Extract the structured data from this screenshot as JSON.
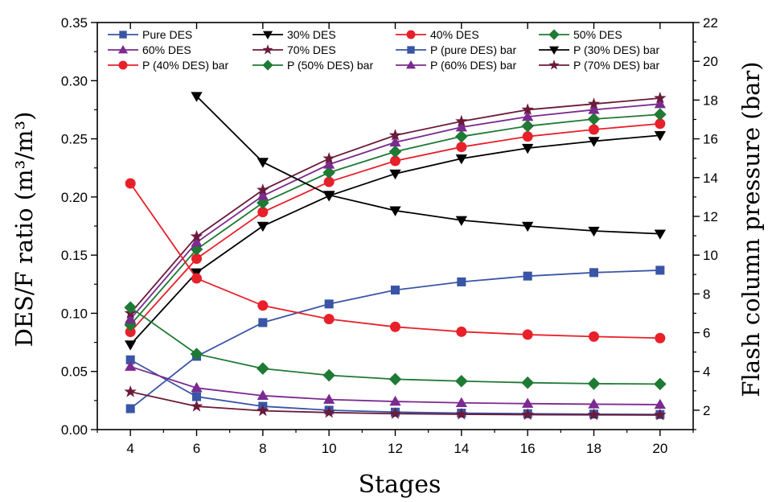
{
  "chart_data": {
    "type": "line",
    "title": "",
    "xlabel": "Stages",
    "ylabel_left": "DES/F ratio (m³/m³)",
    "ylabel_right": "Flash column pressure (bar)",
    "x": [
      4,
      6,
      8,
      10,
      12,
      14,
      16,
      18,
      20
    ],
    "xlim": [
      3,
      21
    ],
    "ylim_left": [
      0,
      0.35
    ],
    "ylim_right": [
      1,
      22
    ],
    "x_ticks": [
      "4",
      "6",
      "8",
      "10",
      "12",
      "14",
      "16",
      "18",
      "20"
    ],
    "y_left_ticks": [
      "0.00",
      "0.05",
      "0.10",
      "0.15",
      "0.20",
      "0.25",
      "0.30",
      "0.35"
    ],
    "y_right_ticks": [
      "2",
      "4",
      "6",
      "8",
      "10",
      "12",
      "14",
      "16",
      "18",
      "20",
      "22"
    ],
    "grid": false,
    "legend_position": "top",
    "series": [
      {
        "name": "Pure DES",
        "axis": "left",
        "marker": "square",
        "color": "#3a55a6",
        "values": [
          0.018,
          0.063,
          0.092,
          0.108,
          0.12,
          0.127,
          0.132,
          0.135,
          0.137
        ]
      },
      {
        "name": "30% DES",
        "axis": "left",
        "marker": "triangle-down",
        "color": "#000000",
        "values": [
          0.073,
          0.135,
          0.175,
          0.201,
          0.22,
          0.233,
          0.242,
          0.248,
          0.253
        ]
      },
      {
        "name": "40% DES",
        "axis": "left",
        "marker": "circle",
        "color": "#e8202a",
        "values": [
          0.084,
          0.147,
          0.187,
          0.213,
          0.231,
          0.243,
          0.252,
          0.258,
          0.263
        ]
      },
      {
        "name": "50% DES",
        "axis": "left",
        "marker": "diamond",
        "color": "#1e7a34",
        "values": [
          0.09,
          0.155,
          0.195,
          0.221,
          0.239,
          0.252,
          0.261,
          0.267,
          0.271
        ]
      },
      {
        "name": "60% DES",
        "axis": "left",
        "marker": "triangle-up",
        "color": "#7b2a8f",
        "values": [
          0.095,
          0.161,
          0.201,
          0.228,
          0.247,
          0.26,
          0.269,
          0.275,
          0.28
        ]
      },
      {
        "name": "70% DES",
        "axis": "left",
        "marker": "star",
        "color": "#6b1a3a",
        "values": [
          0.1,
          0.166,
          0.206,
          0.233,
          0.253,
          0.265,
          0.275,
          0.28,
          0.285
        ]
      },
      {
        "name": "P (pure DES) bar",
        "axis": "right",
        "marker": "square",
        "color": "#3a55a6",
        "values": [
          4.6,
          2.7,
          2.2,
          2.0,
          1.9,
          1.85,
          1.82,
          1.8,
          1.78
        ]
      },
      {
        "name": "P (30% DES) bar",
        "axis": "right",
        "marker": "triangle-down",
        "color": "#000000",
        "values": [
          null,
          18.2,
          14.8,
          13.1,
          12.3,
          11.8,
          11.5,
          11.25,
          11.1
        ]
      },
      {
        "name": "P (40% DES) bar",
        "axis": "right",
        "marker": "circle",
        "color": "#e8202a",
        "values": [
          13.7,
          8.8,
          7.4,
          6.7,
          6.3,
          6.05,
          5.9,
          5.8,
          5.72
        ]
      },
      {
        "name": "P (50% DES) bar",
        "axis": "right",
        "marker": "diamond",
        "color": "#1e7a34",
        "values": [
          7.3,
          4.9,
          4.15,
          3.8,
          3.6,
          3.5,
          3.42,
          3.37,
          3.35
        ]
      },
      {
        "name": "P (60% DES) bar",
        "axis": "right",
        "marker": "triangle-up",
        "color": "#7b2a8f",
        "values": [
          4.25,
          3.15,
          2.75,
          2.55,
          2.45,
          2.38,
          2.34,
          2.31,
          2.29
        ]
      },
      {
        "name": "P (70% DES) bar",
        "axis": "right",
        "marker": "star",
        "color": "#6b1a3a",
        "values": [
          2.95,
          2.2,
          1.97,
          1.88,
          1.82,
          1.79,
          1.77,
          1.76,
          1.75
        ]
      }
    ]
  }
}
